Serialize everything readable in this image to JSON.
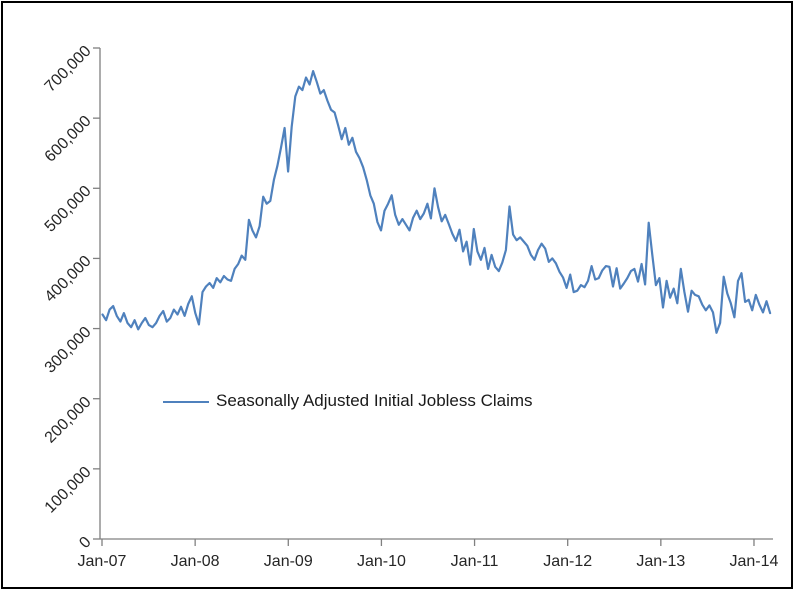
{
  "window": {
    "background_color": "#ffffff",
    "frame_border_color": "#000000"
  },
  "chart_data": {
    "type": "line",
    "title": "",
    "xlabel": "",
    "ylabel": "",
    "grid": false,
    "legend_position": "inside-plot-lower-left",
    "axis_color": "#808080",
    "label_color": "#262626",
    "ylim": [
      0,
      700000
    ],
    "y_ticks": [
      0,
      100000,
      200000,
      300000,
      400000,
      500000,
      600000,
      700000
    ],
    "y_tick_labels": [
      "0",
      "100,000",
      "200,000",
      "300,000",
      "400,000",
      "500,000",
      "600,000",
      "700,000"
    ],
    "x_tick_labels": [
      "Jan-07",
      "Jan-08",
      "Jan-09",
      "Jan-10",
      "Jan-11",
      "Jan-12",
      "Jan-13",
      "Jan-14"
    ],
    "series": [
      {
        "name": "Seasonally Adjusted Initial Jobless Claims",
        "color": "#4F81BD",
        "frequency": "biweekly",
        "start": "Jan-2007",
        "end": "Mar-2014",
        "values": [
          320000,
          312000,
          327000,
          332000,
          318000,
          310000,
          322000,
          308000,
          302000,
          312000,
          299000,
          308000,
          315000,
          305000,
          302000,
          308000,
          318000,
          325000,
          310000,
          315000,
          327000,
          320000,
          331000,
          318000,
          335000,
          346000,
          322000,
          306000,
          352000,
          360000,
          365000,
          358000,
          372000,
          366000,
          375000,
          370000,
          368000,
          385000,
          392000,
          404000,
          398000,
          455000,
          440000,
          430000,
          446000,
          488000,
          478000,
          482000,
          512000,
          532000,
          558000,
          586000,
          524000,
          588000,
          631000,
          645000,
          640000,
          658000,
          648000,
          667000,
          652000,
          635000,
          640000,
          625000,
          612000,
          608000,
          590000,
          570000,
          586000,
          562000,
          572000,
          552000,
          543000,
          530000,
          512000,
          490000,
          478000,
          452000,
          440000,
          468000,
          478000,
          490000,
          462000,
          448000,
          456000,
          448000,
          440000,
          458000,
          468000,
          456000,
          464000,
          478000,
          457000,
          500000,
          473000,
          453000,
          462000,
          449000,
          435000,
          425000,
          441000,
          410000,
          424000,
          391000,
          442000,
          410000,
          398000,
          415000,
          385000,
          405000,
          388000,
          382000,
          394000,
          412000,
          474000,
          434000,
          426000,
          430000,
          424000,
          418000,
          405000,
          398000,
          412000,
          421000,
          414000,
          395000,
          400000,
          393000,
          381000,
          373000,
          358000,
          377000,
          352000,
          354000,
          362000,
          359000,
          368000,
          389000,
          370000,
          372000,
          383000,
          389000,
          388000,
          360000,
          386000,
          357000,
          364000,
          372000,
          382000,
          385000,
          367000,
          392000,
          363000,
          451000,
          405000,
          362000,
          372000,
          330000,
          368000,
          344000,
          357000,
          336000,
          385000,
          352000,
          324000,
          354000,
          348000,
          346000,
          334000,
          326000,
          333000,
          323000,
          294000,
          308000,
          374000,
          350000,
          336000,
          316000,
          368000,
          379000,
          338000,
          341000,
          326000,
          348000,
          334000,
          323000,
          339000,
          322000
        ]
      }
    ]
  },
  "legend": {
    "label": "Seasonally Adjusted Initial Jobless Claims"
  }
}
